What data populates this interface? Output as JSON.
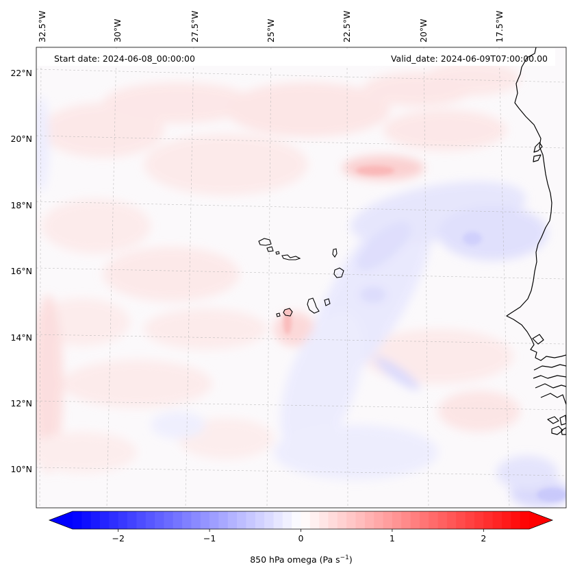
{
  "header": {
    "start_date": "Start date: 2024-06-08_00:00:00",
    "valid_date": "Valid_date: 2024-06-09T07:00:00.00"
  },
  "lon_labels": [
    "32.5°W",
    "30°W",
    "27.5°W",
    "25°W",
    "22.5°W",
    "20°W",
    "17.5°W"
  ],
  "lat_labels": [
    "22°N",
    "20°N",
    "18°N",
    "16°N",
    "14°N",
    "12°N",
    "10°N"
  ],
  "colorbar": {
    "ticks": [
      "−2",
      "−1",
      "0",
      "1",
      "2"
    ],
    "tick_values": [
      -2,
      -1,
      0,
      1,
      2
    ],
    "min": -2.5,
    "max": 2.5,
    "label_main": "850 hPa omega (Pa s",
    "label_sup": "−1",
    "label_end": ")",
    "colors": {
      "negative": "#0000ff",
      "zero": "#ffffff",
      "positive": "#ff0000"
    }
  },
  "colors": {
    "coastline": "#000000",
    "gridline": "#b0b0b0"
  }
}
